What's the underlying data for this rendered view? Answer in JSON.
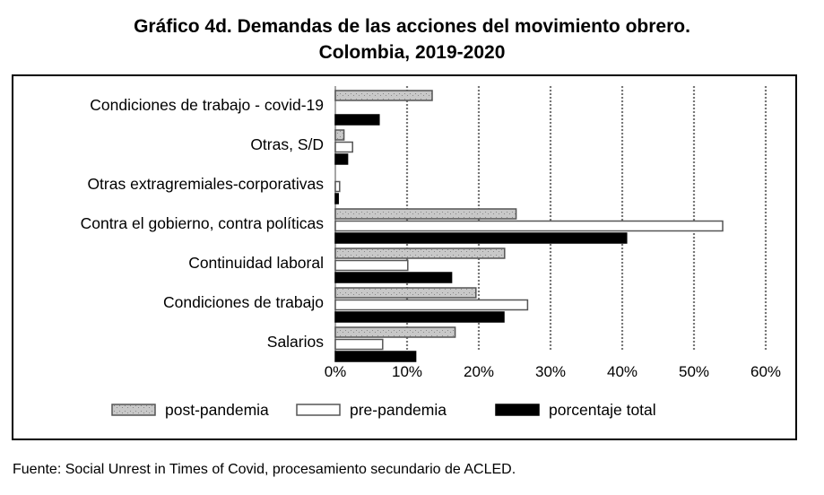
{
  "title_line1": "Gráfico 4d. Demandas de las acciones del movimiento obrero.",
  "title_line2": "Colombia, 2019-2020",
  "source": "Fuente: Social Unrest in Times of Covid, procesamiento secundario de ACLED.",
  "chart_data": {
    "type": "bar",
    "orientation": "horizontal",
    "categories": [
      "Condiciones de trabajo - covid-19",
      "Otras, S/D",
      "Otras extragremiales-corporativas",
      "Contra el gobierno, contra políticas",
      "Continuidad laboral",
      "Condiciones de trabajo",
      "Salarios"
    ],
    "series": [
      {
        "name": "post-pandemia",
        "values": [
          13.5,
          1.2,
          0.0,
          25.2,
          23.6,
          19.6,
          16.7
        ]
      },
      {
        "name": "pre-pandemia",
        "values": [
          0.0,
          2.4,
          0.6,
          54.0,
          10.1,
          26.8,
          6.6
        ]
      },
      {
        "name": "porcentaje total",
        "values": [
          6.1,
          1.7,
          0.4,
          40.6,
          16.2,
          23.5,
          11.2
        ]
      }
    ],
    "xlim": [
      0,
      60
    ],
    "xticks": [
      "0%",
      "10%",
      "20%",
      "30%",
      "40%",
      "50%",
      "60%"
    ],
    "grid": true,
    "legend_position": "bottom",
    "colors": {
      "post-pandemia": "#c8c8c8",
      "pre-pandemia": "#ffffff",
      "porcentaje total": "#000000"
    }
  }
}
